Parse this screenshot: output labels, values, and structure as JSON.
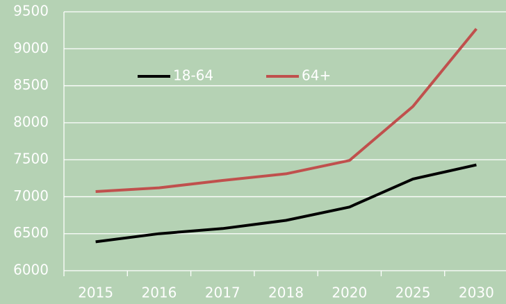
{
  "chart_data": {
    "type": "line",
    "categories": [
      "2015",
      "2016",
      "2017",
      "2018",
      "2020",
      "2025",
      "2030"
    ],
    "series": [
      {
        "name": "18-64",
        "color": "#000000",
        "values": [
          6390,
          6500,
          6570,
          6680,
          6860,
          7240,
          7430
        ]
      },
      {
        "name": "64+",
        "color": "#c0504d",
        "values": [
          7070,
          7120,
          7220,
          7310,
          7490,
          8220,
          9270
        ]
      }
    ],
    "ylim": [
      6000,
      9500
    ],
    "yticks": [
      6000,
      6500,
      7000,
      7500,
      8000,
      8500,
      9000,
      9500
    ],
    "grid": true
  }
}
